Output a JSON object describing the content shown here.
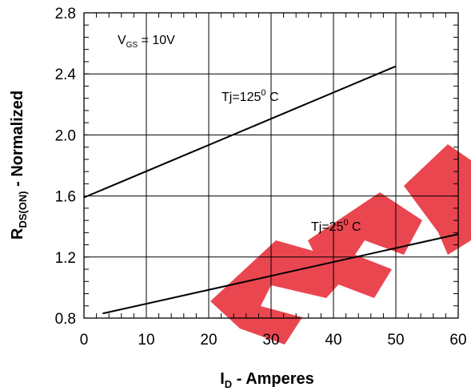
{
  "chart_data": {
    "type": "line",
    "xlabel": "I",
    "xlabel_sub": "D",
    "xlabel_rest": " - Amperes",
    "ylabel": "R",
    "ylabel_sub": "DS(ON)",
    "ylabel_rest": " - Normalized",
    "xlim": [
      0,
      60
    ],
    "ylim": [
      0.8,
      2.8
    ],
    "xticks": [
      0,
      10,
      20,
      30,
      40,
      50,
      60
    ],
    "yticks": [
      0.8,
      1.2,
      1.6,
      2.0,
      2.4,
      2.8
    ],
    "ytick_labels": [
      "0.8",
      "1.2",
      "1.6",
      "2.0",
      "2.4",
      "2.8"
    ],
    "grid": true,
    "series": [
      {
        "name": "Tj=125",
        "label_sup": "0",
        "label_rest": " C",
        "x": [
          0,
          50
        ],
        "y": [
          1.59,
          2.45
        ]
      },
      {
        "name": "Tj=25",
        "label_sup": "0",
        "label_rest": " C",
        "x": [
          3,
          60
        ],
        "y": [
          0.83,
          1.35
        ]
      }
    ],
    "annotation": {
      "prefix": "V",
      "sub": "GS",
      "rest": " = 10V"
    }
  },
  "colors": {
    "line": "#000000",
    "grid": "#000000",
    "watermark": "#e8323c"
  }
}
